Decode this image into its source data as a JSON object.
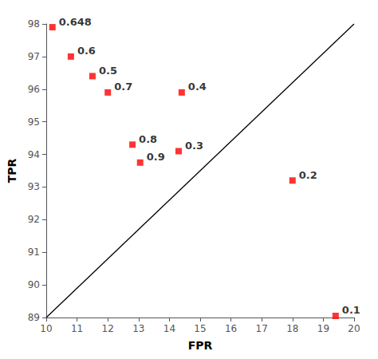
{
  "chart_data": {
    "type": "scatter",
    "xlabel": "FPR",
    "ylabel": "TPR",
    "series": [
      {
        "type": "line",
        "color": "#000000",
        "x": [
          10,
          20
        ],
        "values": [
          89,
          98
        ]
      },
      {
        "type": "scatter",
        "color": "#FF0000",
        "marker": "square",
        "x": [
          10.2,
          10.8,
          11.5,
          12.0,
          14.4,
          12.8,
          13.05,
          14.3,
          18.0,
          19.4
        ],
        "values": [
          97.9,
          97.0,
          96.4,
          95.9,
          95.9,
          94.3,
          93.75,
          94.1,
          93.2,
          89.05
        ],
        "labels": [
          "0.648",
          "0.6",
          "0.5",
          "0.7",
          "0.4",
          "0.8",
          "0.9",
          "0.3",
          "0.2",
          "0.1"
        ]
      }
    ],
    "xlim": [
      10,
      20
    ],
    "ylim": [
      89,
      98
    ],
    "xticks": [
      10,
      11,
      12,
      13,
      14,
      15,
      16,
      17,
      18,
      19,
      20
    ],
    "yticks": [
      89,
      90,
      91,
      92,
      93,
      94,
      95,
      96,
      97,
      98
    ],
    "grid": false
  }
}
